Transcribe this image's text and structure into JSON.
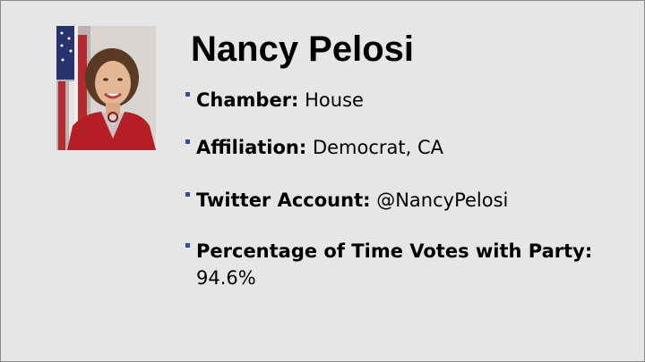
{
  "slide": {
    "title": "Nancy Pelosi",
    "photo": {
      "subject": "portrait"
    },
    "bullets": [
      {
        "label": "Chamber:",
        "value": "House"
      },
      {
        "label": "Affiliation:",
        "value": "Democrat, CA"
      },
      {
        "label": "Twitter Account:",
        "value": "@NancyPelosi"
      },
      {
        "label": "Percentage of Time Votes with Party:",
        "value": "94.6%"
      }
    ]
  },
  "colors": {
    "background": "#e6e6e6",
    "bullet_marker": "#2e4fa3",
    "text": "#000000"
  }
}
